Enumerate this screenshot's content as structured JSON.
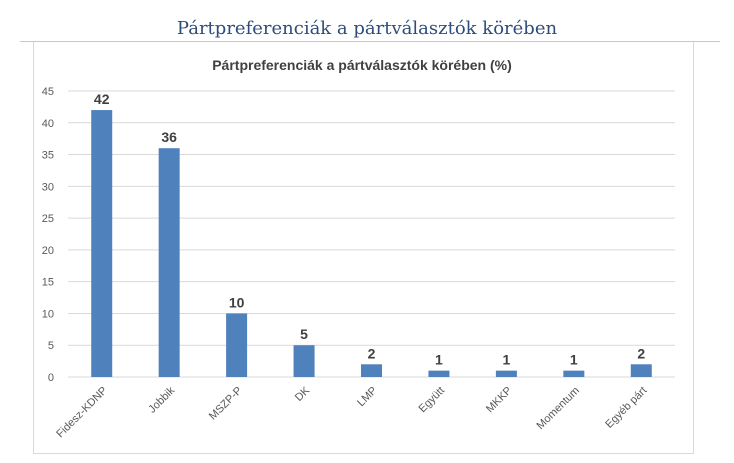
{
  "page_title": "Pártpreferenciák a pártválasztók körében",
  "chart_data": {
    "type": "bar",
    "title": "Pártpreferenciák a pártválasztók körében (%)",
    "categories": [
      "Fidesz-KDNP",
      "Jobbik",
      "MSZP-P",
      "DK",
      "LMP",
      "Együtt",
      "MKKP",
      "Momentum",
      "Egyéb párt"
    ],
    "values": [
      42,
      36,
      10,
      5,
      2,
      1,
      1,
      1,
      2
    ],
    "xlabel": "",
    "ylabel": "",
    "ylim": [
      0,
      45
    ],
    "yticks": [
      0,
      5,
      10,
      15,
      20,
      25,
      30,
      35,
      40,
      45
    ],
    "grid": true,
    "bar_color": "#4f81bd"
  }
}
